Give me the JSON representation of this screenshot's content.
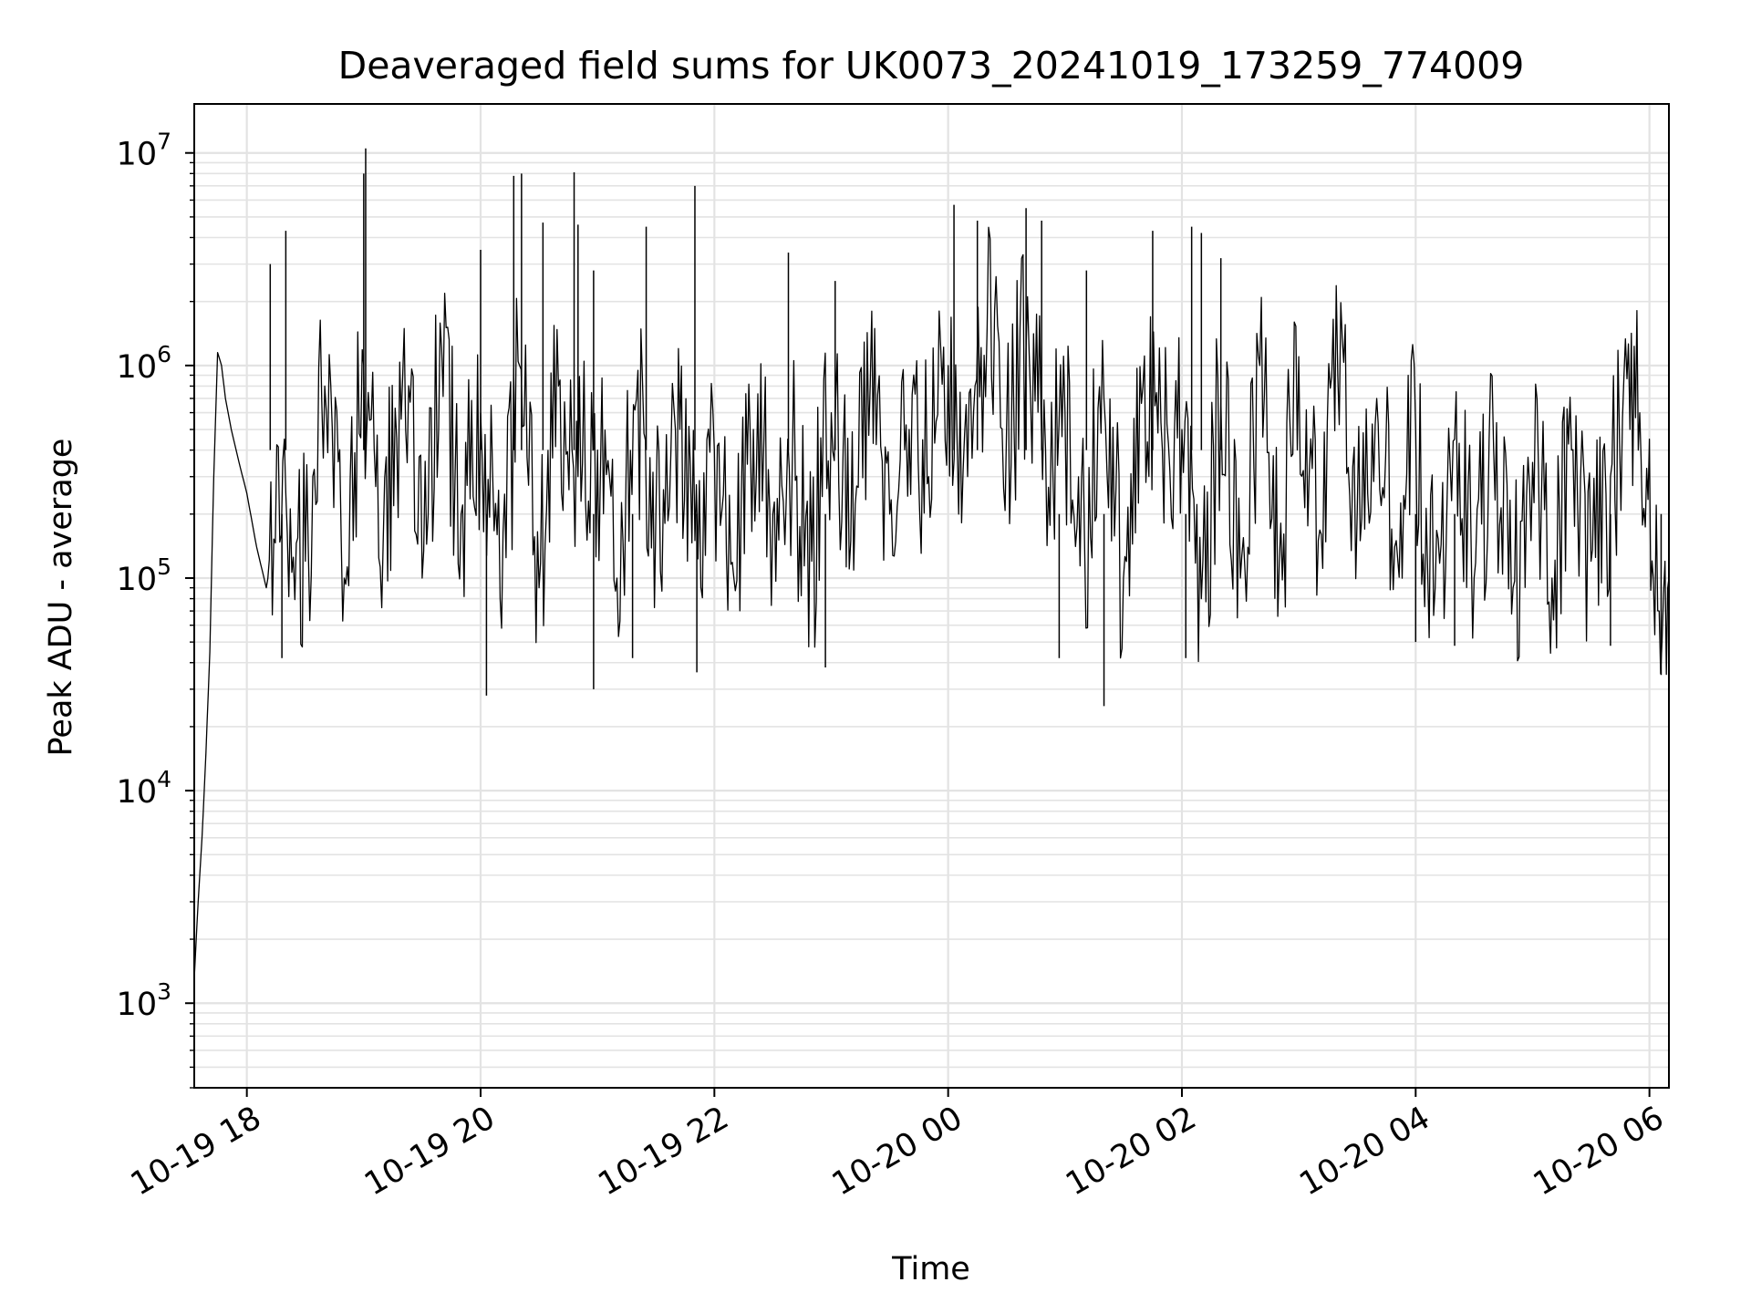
{
  "chart_data": {
    "type": "line",
    "title": "Deaveraged field sums for UK0073_20241019_173259_774009",
    "xlabel": "Time",
    "ylabel": "Peak ADU - average",
    "yscale": "log",
    "grid": true,
    "xlim": [
      "2024-10-19 17:33",
      "2024-10-20 06:10"
    ],
    "ylim": [
      400,
      17000000
    ],
    "x_ticks": [
      {
        "time": "2024-10-19 18:00",
        "label": "10-19 18"
      },
      {
        "time": "2024-10-19 20:00",
        "label": "10-19 20"
      },
      {
        "time": "2024-10-19 22:00",
        "label": "10-19 22"
      },
      {
        "time": "2024-10-20 00:00",
        "label": "10-20 00"
      },
      {
        "time": "2024-10-20 02:00",
        "label": "10-20 02"
      },
      {
        "time": "2024-10-20 04:00",
        "label": "10-20 04"
      },
      {
        "time": "2024-10-20 06:00",
        "label": "10-20 06"
      }
    ],
    "y_ticks": [
      {
        "value": 1000,
        "base": "10",
        "exp": "3"
      },
      {
        "value": 10000,
        "base": "10",
        "exp": "4"
      },
      {
        "value": 100000,
        "base": "10",
        "exp": "5"
      },
      {
        "value": 1000000,
        "base": "10",
        "exp": "6"
      },
      {
        "value": 10000000,
        "base": "10",
        "exp": "7"
      }
    ],
    "series": [
      {
        "color": "#000000",
        "points": [
          [
            "2024-10-19 17:33",
            1300
          ],
          [
            "2024-10-19 17:35",
            3000
          ],
          [
            "2024-10-19 17:37",
            6000
          ],
          [
            "2024-10-19 17:39",
            15000
          ],
          [
            "2024-10-19 17:41",
            45000
          ],
          [
            "2024-10-19 17:43",
            300000
          ],
          [
            "2024-10-19 17:45",
            1150000
          ],
          [
            "2024-10-19 17:47",
            1000000
          ],
          [
            "2024-10-19 17:49",
            700000
          ],
          [
            "2024-10-19 17:52",
            500000
          ],
          [
            "2024-10-19 17:56",
            350000
          ],
          [
            "2024-10-19 18:00",
            250000
          ],
          [
            "2024-10-19 18:05",
            140000
          ],
          [
            "2024-10-19 18:10",
            90000
          ],
          [
            "2024-10-19 18:20",
            250000
          ],
          [
            "2024-10-19 18:30",
            120000
          ],
          [
            "2024-10-19 18:40",
            800000
          ],
          [
            "2024-10-19 18:50",
            100000
          ],
          [
            "2024-10-19 19:00",
            1000000
          ],
          [
            "2024-10-19 19:10",
            150000
          ],
          [
            "2024-10-19 19:20",
            900000
          ],
          [
            "2024-10-19 19:30",
            100000
          ],
          [
            "2024-10-19 19:40",
            1200000
          ],
          [
            "2024-10-19 19:50",
            200000
          ],
          [
            "2024-10-19 20:00",
            600000
          ],
          [
            "2024-10-19 20:10",
            80000
          ],
          [
            "2024-10-19 20:20",
            1000000
          ],
          [
            "2024-10-19 20:30",
            90000
          ],
          [
            "2024-10-19 20:40",
            800000
          ],
          [
            "2024-10-19 20:50",
            300000
          ],
          [
            "2024-10-19 21:00",
            400000
          ],
          [
            "2024-10-19 21:10",
            100000
          ],
          [
            "2024-10-19 21:20",
            700000
          ],
          [
            "2024-10-19 21:30",
            200000
          ],
          [
            "2024-10-19 21:40",
            500000
          ],
          [
            "2024-10-19 21:50",
            150000
          ],
          [
            "2024-10-19 22:00",
            400000
          ],
          [
            "2024-10-19 22:10",
            100000
          ],
          [
            "2024-10-19 22:20",
            500000
          ],
          [
            "2024-10-19 22:30",
            200000
          ],
          [
            "2024-10-19 22:40",
            350000
          ],
          [
            "2024-10-19 22:50",
            120000
          ],
          [
            "2024-10-19 23:00",
            600000
          ],
          [
            "2024-10-19 23:10",
            150000
          ],
          [
            "2024-10-19 23:20",
            800000
          ],
          [
            "2024-10-19 23:30",
            200000
          ],
          [
            "2024-10-19 23:40",
            500000
          ],
          [
            "2024-10-19 23:50",
            300000
          ],
          [
            "2024-10-20 00:00",
            1000000
          ],
          [
            "2024-10-20 00:10",
            300000
          ],
          [
            "2024-10-20 00:20",
            1500000
          ],
          [
            "2024-10-20 00:30",
            500000
          ],
          [
            "2024-10-20 00:40",
            1200000
          ],
          [
            "2024-10-20 00:50",
            400000
          ],
          [
            "2024-10-20 01:00",
            600000
          ],
          [
            "2024-10-20 01:10",
            150000
          ],
          [
            "2024-10-20 01:20",
            700000
          ],
          [
            "2024-10-20 01:30",
            100000
          ],
          [
            "2024-10-20 01:40",
            800000
          ],
          [
            "2024-10-20 01:50",
            400000
          ],
          [
            "2024-10-20 02:00",
            500000
          ],
          [
            "2024-10-20 02:10",
            80000
          ],
          [
            "2024-10-20 02:20",
            700000
          ],
          [
            "2024-10-20 02:30",
            100000
          ],
          [
            "2024-10-20 02:40",
            1000000
          ],
          [
            "2024-10-20 02:50",
            120000
          ],
          [
            "2024-10-20 03:00",
            1100000
          ],
          [
            "2024-10-20 03:10",
            150000
          ],
          [
            "2024-10-20 03:20",
            900000
          ],
          [
            "2024-10-20 03:30",
            200000
          ],
          [
            "2024-10-20 03:40",
            700000
          ],
          [
            "2024-10-20 03:50",
            150000
          ],
          [
            "2024-10-20 04:00",
            500000
          ],
          [
            "2024-10-20 04:10",
            90000
          ],
          [
            "2024-10-20 04:20",
            450000
          ],
          [
            "2024-10-20 04:30",
            100000
          ],
          [
            "2024-10-20 04:40",
            400000
          ],
          [
            "2024-10-20 04:50",
            90000
          ],
          [
            "2024-10-20 05:00",
            350000
          ],
          [
            "2024-10-20 05:10",
            100000
          ],
          [
            "2024-10-20 05:20",
            400000
          ],
          [
            "2024-10-20 05:30",
            120000
          ],
          [
            "2024-10-20 05:40",
            300000
          ],
          [
            "2024-10-20 05:50",
            500000
          ],
          [
            "2024-10-20 05:55",
            600000
          ],
          [
            "2024-10-20 06:00",
            450000
          ],
          [
            "2024-10-20 06:02",
            100000
          ],
          [
            "2024-10-20 06:05",
            70000
          ],
          [
            "2024-10-20 06:08",
            120000
          ],
          [
            "2024-10-20 06:10",
            100000
          ]
        ],
        "spikes": [
          [
            "2024-10-19 18:20",
            4300000
          ],
          [
            "2024-10-19 18:12",
            3000000
          ],
          [
            "2024-10-19 19:01",
            10500000
          ],
          [
            "2024-10-19 19:00",
            8000000
          ],
          [
            "2024-10-19 20:00",
            3500000
          ],
          [
            "2024-10-19 20:17",
            7800000
          ],
          [
            "2024-10-19 20:21",
            8000000
          ],
          [
            "2024-10-19 20:32",
            4700000
          ],
          [
            "2024-10-19 20:48",
            8100000
          ],
          [
            "2024-10-19 20:50",
            4600000
          ],
          [
            "2024-10-19 20:58",
            2800000
          ],
          [
            "2024-10-19 21:25",
            4500000
          ],
          [
            "2024-10-19 21:50",
            7000000
          ],
          [
            "2024-10-19 22:38",
            3400000
          ],
          [
            "2024-10-19 23:02",
            2500000
          ],
          [
            "2024-10-20 00:03",
            5700000
          ],
          [
            "2024-10-20 00:15",
            4800000
          ],
          [
            "2024-10-20 00:40",
            5500000
          ],
          [
            "2024-10-20 00:48",
            4800000
          ],
          [
            "2024-10-20 01:11",
            2800000
          ],
          [
            "2024-10-20 01:45",
            4300000
          ],
          [
            "2024-10-20 02:05",
            4500000
          ],
          [
            "2024-10-20 02:10",
            4200000
          ],
          [
            "2024-10-20 02:20",
            3200000
          ]
        ],
        "dips": [
          [
            "2024-10-19 18:18",
            42000
          ],
          [
            "2024-10-19 20:03",
            28000
          ],
          [
            "2024-10-19 20:58",
            30000
          ],
          [
            "2024-10-19 21:18",
            42000
          ],
          [
            "2024-10-19 21:51",
            36000
          ],
          [
            "2024-10-19 22:57",
            38000
          ],
          [
            "2024-10-20 00:57",
            42000
          ],
          [
            "2024-10-20 01:20",
            25000
          ],
          [
            "2024-10-20 02:02",
            42000
          ],
          [
            "2024-10-20 04:00",
            50000
          ],
          [
            "2024-10-20 04:20",
            48000
          ],
          [
            "2024-10-20 05:40",
            48000
          ],
          [
            "2024-10-20 06:06",
            35000
          ]
        ]
      }
    ]
  }
}
